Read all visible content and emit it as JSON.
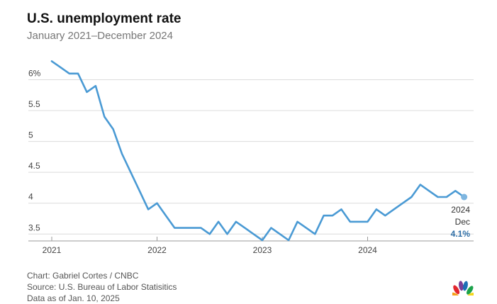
{
  "chart_data": {
    "type": "line",
    "title": "U.S. unemployment rate",
    "subtitle": "January 2021–December 2024",
    "xlabel": "",
    "ylabel": "",
    "ylim": [
      3.4,
      6.35
    ],
    "y_ticks": [
      "6%",
      "5.5",
      "5",
      "4.5",
      "4",
      "3.5"
    ],
    "y_tick_values": [
      6,
      5.5,
      5,
      4.5,
      4,
      3.5
    ],
    "x_ticks": [
      "2021",
      "2022",
      "2023",
      "2024"
    ],
    "grid": true,
    "series": [
      {
        "color": "#4a9ad4",
        "x": [
          "2021-01",
          "2021-02",
          "2021-03",
          "2021-04",
          "2021-05",
          "2021-06",
          "2021-07",
          "2021-08",
          "2021-09",
          "2021-10",
          "2021-11",
          "2021-12",
          "2022-01",
          "2022-02",
          "2022-03",
          "2022-04",
          "2022-05",
          "2022-06",
          "2022-07",
          "2022-08",
          "2022-09",
          "2022-10",
          "2022-11",
          "2022-12",
          "2023-01",
          "2023-02",
          "2023-03",
          "2023-04",
          "2023-05",
          "2023-06",
          "2023-07",
          "2023-08",
          "2023-09",
          "2023-10",
          "2023-11",
          "2023-12",
          "2024-01",
          "2024-02",
          "2024-03",
          "2024-04",
          "2024-05",
          "2024-06",
          "2024-07",
          "2024-08",
          "2024-09",
          "2024-10",
          "2024-11",
          "2024-12"
        ],
        "values": [
          6.3,
          6.2,
          6.1,
          6.1,
          5.8,
          5.9,
          5.4,
          5.2,
          4.8,
          4.5,
          4.2,
          3.9,
          4.0,
          3.8,
          3.6,
          3.6,
          3.6,
          3.6,
          3.5,
          3.7,
          3.5,
          3.7,
          3.6,
          3.5,
          3.4,
          3.6,
          3.5,
          3.4,
          3.7,
          3.6,
          3.5,
          3.8,
          3.8,
          3.9,
          3.7,
          3.7,
          3.7,
          3.9,
          3.8,
          3.9,
          4.0,
          4.1,
          4.3,
          4.2,
          4.1,
          4.1,
          4.2,
          4.1
        ]
      }
    ],
    "end_annotation": {
      "year": "2024",
      "month": "Dec",
      "value": "4.1%"
    }
  },
  "credits": {
    "chart": "Chart: Gabriel Cortes / CNBC",
    "source": "Source: U.S. Bureau of Labor Statisitics",
    "data_as_of": "Data as of Jan. 10, 2025"
  }
}
